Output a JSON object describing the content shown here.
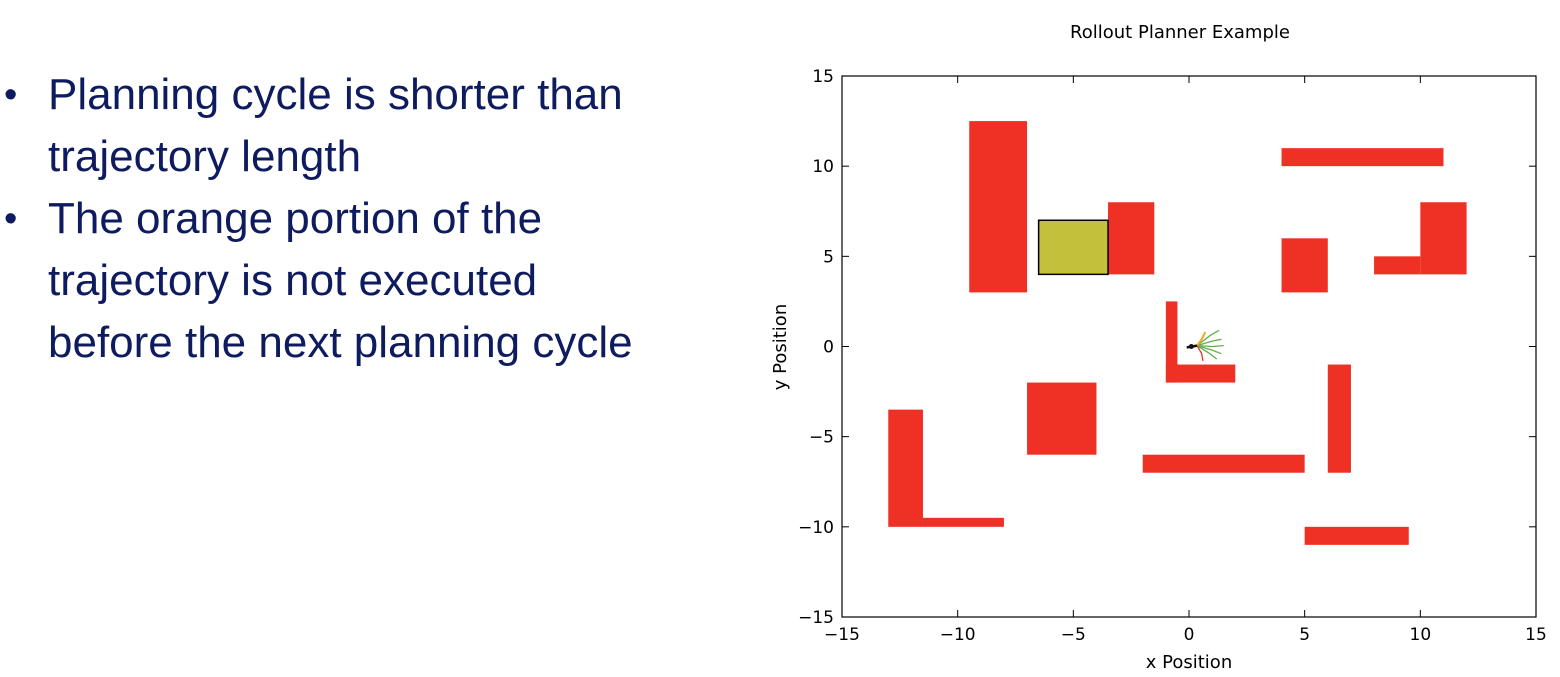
{
  "slide": {
    "bullets": [
      "Planning cycle is shorter than trajectory length",
      "The orange portion of the trajectory is not executed before the next planning cycle"
    ],
    "bullet_lines": [
      [
        "Planning cycle is shorter than",
        "trajectory length"
      ],
      [
        "The orange portion of the",
        "trajectory is not executed",
        "before the next planning cycle"
      ]
    ],
    "bullet_color": "#0e1b5e"
  },
  "chart_data": {
    "type": "scatter",
    "title": "Rollout Planner Example",
    "xlabel": "x Position",
    "ylabel": "y Position",
    "xlim": [
      -15,
      15
    ],
    "ylim": [
      -15,
      15
    ],
    "xticks": [
      -15,
      -10,
      -5,
      0,
      5,
      10,
      15
    ],
    "yticks": [
      -15,
      -10,
      -5,
      0,
      5,
      10,
      15
    ],
    "xtick_labels": [
      "−15",
      "−10",
      "−5",
      "0",
      "5",
      "10",
      "15"
    ],
    "ytick_labels": [
      "−15",
      "−10",
      "−5",
      "0",
      "5",
      "10",
      "15"
    ],
    "grid": false,
    "obstacle_color": "#ee3124",
    "goal_color": "#c3c13c",
    "obstacles": [
      {
        "x": -9.5,
        "y": 3.0,
        "w": 2.5,
        "h": 9.5
      },
      {
        "x": -3.5,
        "y": 4.0,
        "w": 2.0,
        "h": 4.0
      },
      {
        "x": -13.0,
        "y": -10.0,
        "w": 1.5,
        "h": 6.5
      },
      {
        "x": -11.5,
        "y": -10.0,
        "w": 3.5,
        "h": 0.5
      },
      {
        "x": -7.0,
        "y": -6.0,
        "w": 3.0,
        "h": 4.0
      },
      {
        "x": -1.0,
        "y": -2.0,
        "w": 0.5,
        "h": 4.5
      },
      {
        "x": -1.0,
        "y": -2.0,
        "w": 3.0,
        "h": 1.0
      },
      {
        "x": -2.0,
        "y": -7.0,
        "w": 7.0,
        "h": 1.0
      },
      {
        "x": 6.0,
        "y": -7.0,
        "w": 1.0,
        "h": 6.0
      },
      {
        "x": 5.0,
        "y": -11.0,
        "w": 4.5,
        "h": 1.0
      },
      {
        "x": 4.0,
        "y": 3.0,
        "w": 2.0,
        "h": 3.0
      },
      {
        "x": 4.0,
        "y": 10.0,
        "w": 7.0,
        "h": 1.0
      },
      {
        "x": 10.0,
        "y": 4.0,
        "w": 2.0,
        "h": 4.0
      },
      {
        "x": 8.0,
        "y": 4.0,
        "w": 2.0,
        "h": 1.0
      }
    ],
    "goal": {
      "x": -6.5,
      "y": 4.0,
      "w": 3.0,
      "h": 3.0
    },
    "vehicle": {
      "x": 0.1,
      "y": 0.0
    },
    "trajectories": {
      "executed_color": "#111111",
      "unexecuted_color": "#f5a623",
      "candidate_color": "#5fb04a",
      "rejected_color": "#ee3124",
      "executed": [
        [
          -0.1,
          -0.05
        ],
        [
          0.15,
          0.0
        ],
        [
          0.35,
          0.05
        ]
      ],
      "unexecuted": [
        [
          0.35,
          0.05
        ],
        [
          0.55,
          0.4
        ],
        [
          0.7,
          0.8
        ]
      ],
      "candidates": [
        [
          [
            0.35,
            0.05
          ],
          [
            0.9,
            0.6
          ],
          [
            1.3,
            0.9
          ]
        ],
        [
          [
            0.35,
            0.05
          ],
          [
            1.0,
            0.3
          ],
          [
            1.4,
            0.4
          ]
        ],
        [
          [
            0.35,
            0.05
          ],
          [
            1.0,
            0.0
          ],
          [
            1.5,
            0.05
          ]
        ],
        [
          [
            0.35,
            0.05
          ],
          [
            1.0,
            -0.2
          ],
          [
            1.4,
            -0.4
          ]
        ],
        [
          [
            0.35,
            0.05
          ],
          [
            0.9,
            -0.4
          ],
          [
            1.2,
            -0.7
          ]
        ]
      ],
      "rejected": [
        [
          [
            0.35,
            0.05
          ],
          [
            0.55,
            -0.4
          ],
          [
            0.6,
            -0.8
          ]
        ]
      ]
    }
  }
}
